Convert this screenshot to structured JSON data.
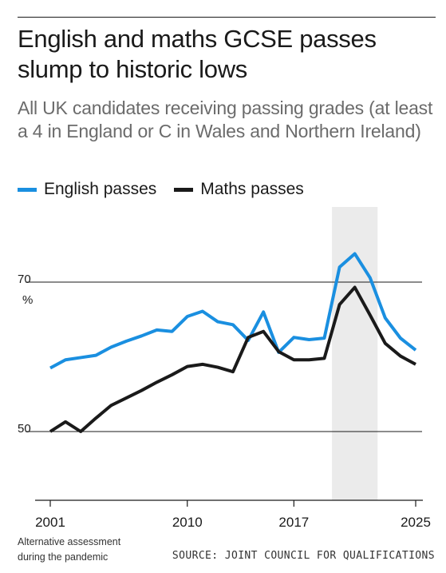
{
  "title": "English and maths GCSE passes slump to historic lows",
  "subtitle": "All UK candidates receiving passing grades (at least a 4 in England or C in Wales and Northern Ireland)",
  "legend": {
    "english": "English passes",
    "maths": "Maths passes"
  },
  "colors": {
    "english": "#1a8fe0",
    "maths": "#1a1a1a",
    "shade": "#ebebeb",
    "grid": "#1a1a1a"
  },
  "y_unit": "%",
  "shade_note": "Alternative assessment during the pandemic",
  "source": "SOURCE: JOINT COUNCIL FOR QUALIFICATIONS",
  "chart_data": {
    "type": "line",
    "x_ticks": [
      2001,
      2010,
      2017,
      2025
    ],
    "y_ticks": [
      50,
      70
    ],
    "xlim": [
      2001,
      2025
    ],
    "ylim": [
      40,
      80
    ],
    "shaded_range": [
      2019.5,
      2022.5
    ],
    "series": [
      {
        "name": "English passes",
        "key": "english",
        "x": [
          2001,
          2002,
          2003,
          2004,
          2005,
          2006,
          2007,
          2008,
          2009,
          2010,
          2011,
          2012,
          2013,
          2014,
          2015,
          2016,
          2017,
          2018,
          2019,
          2020,
          2021,
          2022,
          2023,
          2024,
          2025
        ],
        "values": [
          58.5,
          59.6,
          59.9,
          60.2,
          61.3,
          62.1,
          62.8,
          63.6,
          63.4,
          65.4,
          66.1,
          64.7,
          64.3,
          62.2,
          66.0,
          60.6,
          62.6,
          62.3,
          62.5,
          72.0,
          73.8,
          70.6,
          65.2,
          62.5,
          60.9
        ]
      },
      {
        "name": "Maths passes",
        "key": "maths",
        "x": [
          2001,
          2002,
          2003,
          2004,
          2005,
          2006,
          2007,
          2008,
          2009,
          2010,
          2011,
          2012,
          2013,
          2014,
          2015,
          2016,
          2017,
          2018,
          2019,
          2020,
          2021,
          2022,
          2023,
          2024,
          2025
        ],
        "values": [
          50.0,
          51.3,
          50.0,
          51.8,
          53.5,
          54.5,
          55.5,
          56.6,
          57.6,
          58.7,
          59.0,
          58.6,
          58.0,
          62.6,
          63.4,
          60.7,
          59.6,
          59.6,
          59.8,
          67.0,
          69.3,
          65.6,
          61.8,
          60.1,
          59.0
        ]
      }
    ]
  }
}
